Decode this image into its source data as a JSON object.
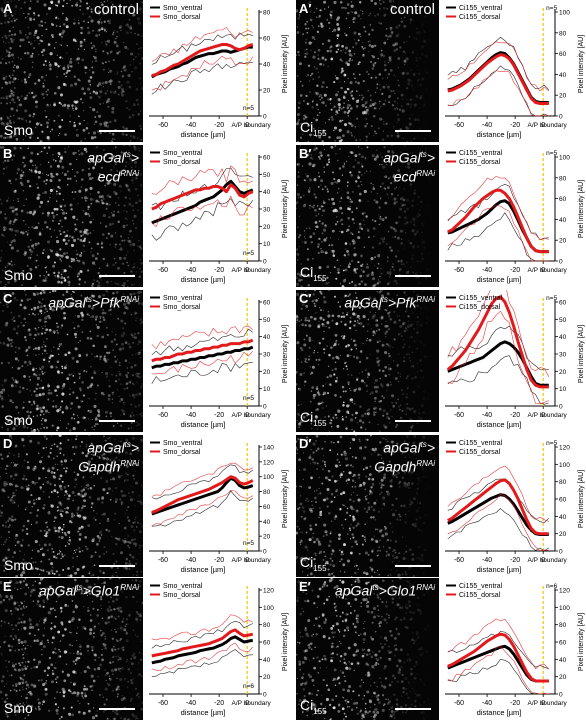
{
  "panels": [
    {
      "id": "A",
      "label": "A",
      "title": "control",
      "stain": "Smo",
      "legend": [
        "Smo_ventral",
        "Smo_dorsal"
      ],
      "n": "n=5",
      "ymax": 80,
      "yticks": [
        0,
        20,
        40,
        60,
        80
      ],
      "boundary_label": "A/P boundary",
      "ventral": [
        30,
        32,
        33,
        34,
        36,
        37,
        38,
        40,
        41,
        43,
        45,
        46,
        47,
        48,
        48,
        49,
        50,
        50,
        49,
        50,
        51,
        52,
        53,
        53
      ],
      "dorsal": [
        31,
        32,
        34,
        35,
        37,
        39,
        40,
        42,
        44,
        46,
        48,
        50,
        51,
        52,
        53,
        54,
        55,
        55,
        54,
        52,
        51,
        52,
        54,
        55
      ]
    },
    {
      "id": "Ap",
      "label": "A′",
      "title": "control",
      "stain": "Ci",
      "stain_sub": "155",
      "legend": [
        "Ci155_ventral",
        "Ci155_dorsal"
      ],
      "n": "n=5",
      "ymax": 100,
      "yticks": [
        0,
        20,
        40,
        60,
        80,
        100
      ],
      "boundary_label": "A/P boundary",
      "ventral": [
        25,
        26,
        28,
        30,
        33,
        36,
        40,
        44,
        48,
        52,
        56,
        59,
        61,
        60,
        56,
        50,
        42,
        34,
        26,
        18,
        14,
        13,
        13,
        13
      ],
      "dorsal": [
        24,
        25,
        27,
        29,
        32,
        35,
        39,
        43,
        47,
        51,
        54,
        57,
        59,
        58,
        55,
        49,
        41,
        33,
        25,
        17,
        13,
        12,
        12,
        12
      ]
    },
    {
      "id": "B",
      "label": "B",
      "title_main": "apGal",
      "title_sup": "ts",
      "title_after": ">",
      "title2_main": "ecd",
      "title2_sup": "RNAi",
      "stain": "Smo",
      "legend": [
        "Smo_ventral",
        "Smo_dorsal"
      ],
      "n": "n=5",
      "ymax": 60,
      "yticks": [
        0,
        10,
        20,
        30,
        40,
        50,
        60
      ],
      "boundary_label": "A/P boundary",
      "ventral": [
        22,
        23,
        24,
        25,
        26,
        27,
        28,
        29,
        30,
        31,
        32,
        34,
        35,
        36,
        37,
        39,
        41,
        44,
        46,
        43,
        40,
        39,
        40,
        41
      ],
      "dorsal": [
        30,
        31,
        33,
        34,
        35,
        36,
        37,
        38,
        39,
        40,
        41,
        41,
        42,
        42,
        43,
        43,
        42,
        40,
        44,
        42,
        38,
        37,
        39,
        40
      ]
    },
    {
      "id": "Bp",
      "label": "B′",
      "title_main": "apGal",
      "title_sup": "ts",
      "title_after": ">",
      "title2_main": "ecd",
      "title2_sup": "RNAi",
      "stain": "Ci",
      "stain_sub": "155",
      "legend": [
        "Ci155_ventral",
        "Ci155_dorsal"
      ],
      "n": "n=5",
      "ymax": 100,
      "yticks": [
        0,
        20,
        40,
        60,
        80,
        100
      ],
      "boundary_label": "A/P boundary",
      "ventral": [
        27,
        28,
        30,
        32,
        34,
        36,
        38,
        40,
        43,
        46,
        50,
        54,
        57,
        58,
        55,
        48,
        39,
        30,
        22,
        14,
        10,
        9,
        9,
        9
      ],
      "dorsal": [
        28,
        30,
        34,
        38,
        42,
        47,
        52,
        56,
        60,
        63,
        66,
        68,
        68,
        65,
        60,
        52,
        42,
        32,
        22,
        14,
        10,
        9,
        9,
        9
      ]
    },
    {
      "id": "C",
      "label": "C",
      "title_main": "apGal",
      "title_sup": "ts",
      "title_after": ">Pfk",
      "title_sup2": "RNAi",
      "stain": "Smo",
      "legend": [
        "Smo_ventral",
        "Smo_dorsal"
      ],
      "n": "n=5",
      "ymax": 60,
      "yticks": [
        0,
        10,
        20,
        30,
        40,
        50,
        60
      ],
      "boundary_label": "A/P boundary",
      "ventral": [
        22,
        23,
        23,
        24,
        24,
        25,
        25,
        26,
        26,
        27,
        27,
        28,
        28,
        29,
        29,
        30,
        30,
        31,
        31,
        32,
        32,
        33,
        33,
        34
      ],
      "dorsal": [
        26,
        27,
        27,
        28,
        28,
        29,
        30,
        30,
        31,
        31,
        32,
        32,
        33,
        33,
        34,
        34,
        35,
        35,
        36,
        36,
        36,
        37,
        37,
        38
      ]
    },
    {
      "id": "Cp",
      "label": "C′",
      "title_main": "apGal",
      "title_sup": "ts",
      "title_after": ">Pfk",
      "title_sup2": "RNAi",
      "stain": "Ci",
      "stain_sub": "155",
      "legend": [
        "Ci155_ventral",
        "Ci155_dorsal"
      ],
      "n": "n=5",
      "ymax": 60,
      "yticks": [
        0,
        10,
        20,
        30,
        40,
        50,
        60
      ],
      "boundary_label": "A/P boundary",
      "ventral": [
        20,
        21,
        22,
        23,
        24,
        25,
        26,
        27,
        28,
        30,
        32,
        34,
        36,
        37,
        36,
        34,
        31,
        27,
        22,
        17,
        13,
        12,
        12,
        12
      ],
      "dorsal": [
        21,
        23,
        26,
        29,
        32,
        36,
        40,
        44,
        49,
        54,
        59,
        62,
        63,
        60,
        54,
        46,
        37,
        29,
        21,
        15,
        12,
        11,
        11,
        11
      ]
    },
    {
      "id": "D",
      "label": "D",
      "title_main": "apGal",
      "title_sup": "ts",
      "title_after": ">",
      "title2_main": "Gapdh",
      "title2_sup": "RNAi",
      "stain": "Smo",
      "legend": [
        "Smo_ventral",
        "Smo_dorsal"
      ],
      "n": "n=5",
      "ymax": 140,
      "yticks": [
        0,
        20,
        40,
        60,
        80,
        100,
        120,
        140
      ],
      "boundary_label": "A/P boundary",
      "ventral": [
        50,
        52,
        54,
        56,
        58,
        60,
        62,
        64,
        66,
        68,
        70,
        72,
        74,
        76,
        78,
        80,
        85,
        92,
        98,
        95,
        88,
        85,
        86,
        88
      ],
      "dorsal": [
        52,
        54,
        57,
        60,
        63,
        66,
        69,
        71,
        73,
        75,
        77,
        79,
        81,
        83,
        86,
        89,
        92,
        96,
        100,
        98,
        92,
        90,
        92,
        95
      ]
    },
    {
      "id": "Dp",
      "label": "D′",
      "title_main": "apGal",
      "title_sup": "ts",
      "title_after": ">",
      "title2_main": "Gapdh",
      "title2_sup": "RNAi",
      "stain": "Ci",
      "stain_sub": "155",
      "legend": [
        "Ci155_ventral",
        "Ci155_dorsal"
      ],
      "n": "n=5",
      "ymax": 120,
      "yticks": [
        0,
        20,
        40,
        60,
        80,
        100,
        120
      ],
      "boundary_label": "A/P boundary",
      "ventral": [
        32,
        34,
        37,
        40,
        43,
        46,
        49,
        52,
        55,
        58,
        61,
        63,
        65,
        64,
        60,
        54,
        46,
        38,
        30,
        24,
        20,
        19,
        19,
        19
      ],
      "dorsal": [
        35,
        38,
        42,
        46,
        50,
        54,
        58,
        62,
        66,
        70,
        74,
        78,
        81,
        82,
        78,
        70,
        60,
        48,
        36,
        26,
        21,
        20,
        20,
        20
      ]
    },
    {
      "id": "E",
      "label": "E",
      "title_main": "apGal",
      "title_sup": "ts",
      "title_after": ">Glo1",
      "title_sup2": "RNAi",
      "stain": "Smo",
      "legend": [
        "Smo_ventral",
        "Smo_dorsal"
      ],
      "n": "n=6",
      "ymax": 120,
      "yticks": [
        0,
        20,
        40,
        60,
        80,
        100,
        120
      ],
      "boundary_label": "A/P boundary",
      "ventral": [
        36,
        37,
        38,
        40,
        41,
        42,
        44,
        45,
        46,
        47,
        48,
        50,
        51,
        52,
        53,
        55,
        57,
        60,
        64,
        66,
        63,
        60,
        61,
        62
      ],
      "dorsal": [
        44,
        45,
        46,
        47,
        48,
        49,
        50,
        52,
        53,
        54,
        55,
        56,
        57,
        58,
        60,
        62,
        64,
        68,
        72,
        74,
        70,
        67,
        68,
        69
      ]
    },
    {
      "id": "Ep",
      "label": "E′",
      "title_main": "apGal",
      "title_sup": "ts",
      "title_after": ">Glo1",
      "title_sup2": "RNAi",
      "stain": "Ci",
      "stain_sub": "155",
      "legend": [
        "Ci155_ventral",
        "Ci155_dorsal"
      ],
      "n": "n=6",
      "ymax": 120,
      "yticks": [
        0,
        20,
        40,
        60,
        80,
        100,
        120
      ],
      "boundary_label": "A/P boundary",
      "ventral": [
        30,
        32,
        34,
        36,
        38,
        40,
        42,
        44,
        46,
        48,
        50,
        52,
        54,
        55,
        52,
        46,
        38,
        30,
        22,
        17,
        15,
        15,
        15,
        15
      ],
      "dorsal": [
        32,
        34,
        37,
        40,
        43,
        46,
        49,
        53,
        57,
        61,
        64,
        67,
        69,
        68,
        63,
        55,
        45,
        35,
        25,
        18,
        15,
        15,
        15,
        15
      ]
    }
  ],
  "axis": {
    "xlabel": "distance [µm]",
    "ylabel": "Pixel intensity [AU]",
    "xticks": [
      "-60",
      "-40",
      "-20",
      "0"
    ]
  },
  "colors": {
    "ventral": "#000000",
    "dorsal": "#e31a1c",
    "boundary": "#f5c400"
  }
}
